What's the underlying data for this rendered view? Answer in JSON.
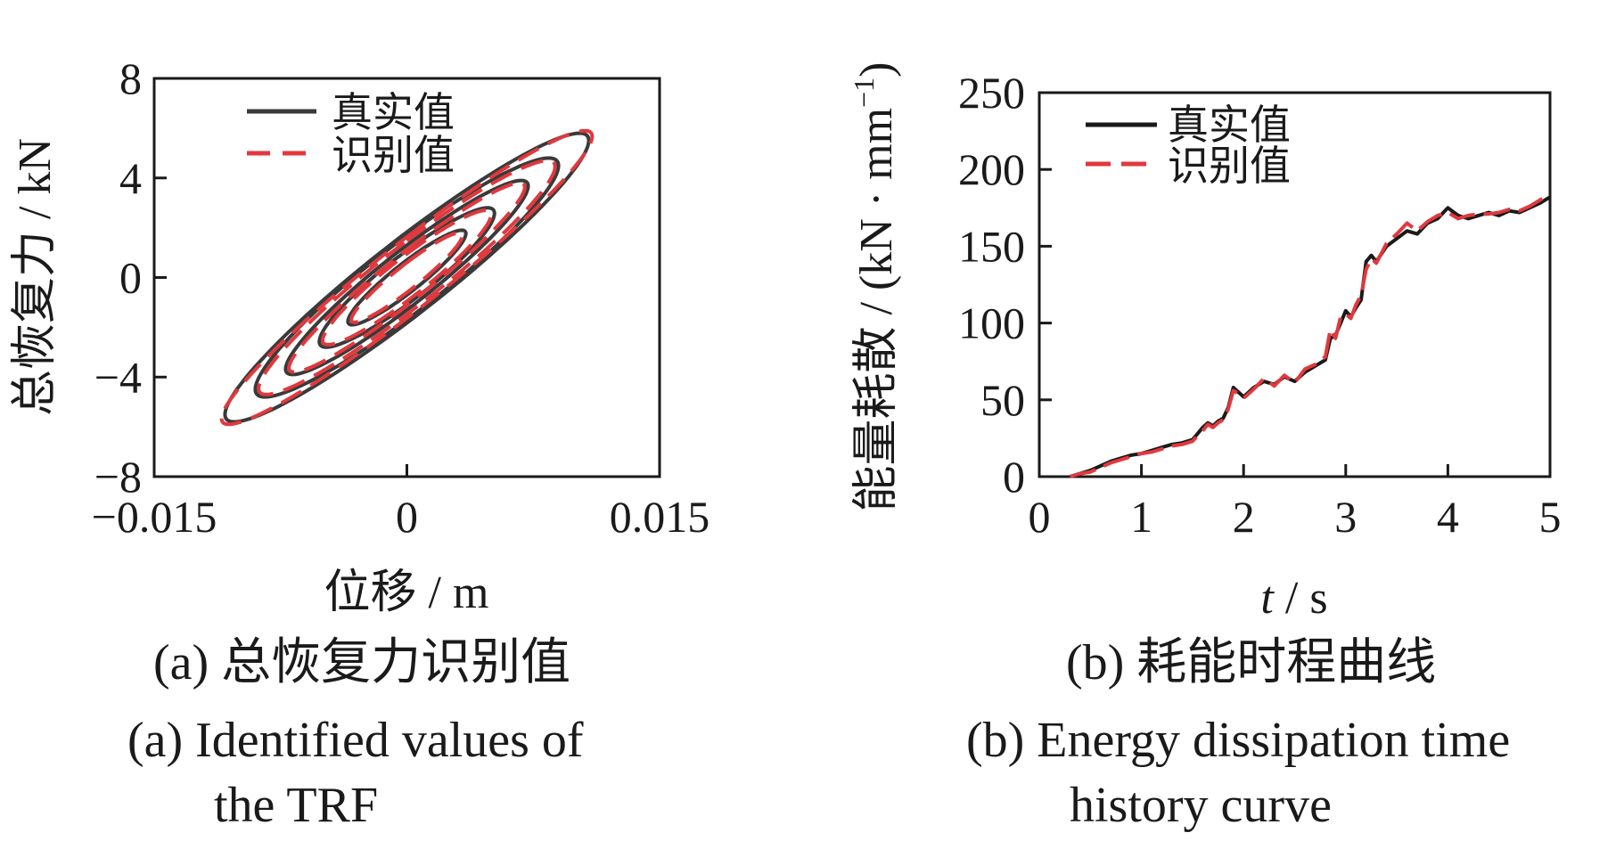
{
  "colors": {
    "real": "#3a3a3a",
    "identified": "#e0393e",
    "axis": "#1a1a1a"
  },
  "chart_data": [
    {
      "type": "line",
      "panel": "a",
      "xlabel": "位移 / m",
      "ylabel": "总恢复力 / kN",
      "xlim": [
        -0.015,
        0.015
      ],
      "ylim": [
        -8,
        8
      ],
      "x_ticks": [
        "−0.015",
        "0",
        "0.015"
      ],
      "y_ticks": [
        "8",
        "4",
        "0",
        "−4",
        "−8"
      ],
      "legend": [
        "真实值",
        "识别值"
      ],
      "legend_position": "top-left",
      "series": [
        {
          "name": "真实值",
          "style": "solid",
          "loops": [
            {
              "disp_amp": 0.0108,
              "force_amp": 5.8,
              "phase_lag": 0.32
            },
            {
              "disp_amp": 0.009,
              "force_amp": 4.8,
              "phase_lag": 0.36
            },
            {
              "disp_amp": 0.0072,
              "force_amp": 3.9,
              "phase_lag": 0.34
            },
            {
              "disp_amp": 0.0052,
              "force_amp": 2.8,
              "phase_lag": 0.4
            },
            {
              "disp_amp": 0.0035,
              "force_amp": 1.9,
              "phase_lag": 0.38
            }
          ]
        },
        {
          "name": "识别值",
          "style": "dashed",
          "loops": [
            {
              "disp_amp": 0.011,
              "force_amp": 5.9,
              "phase_lag": 0.28
            },
            {
              "disp_amp": 0.0088,
              "force_amp": 4.7,
              "phase_lag": 0.32
            },
            {
              "disp_amp": 0.007,
              "force_amp": 3.8,
              "phase_lag": 0.3
            },
            {
              "disp_amp": 0.005,
              "force_amp": 2.7,
              "phase_lag": 0.36
            },
            {
              "disp_amp": 0.0033,
              "force_amp": 1.8,
              "phase_lag": 0.34
            }
          ]
        }
      ]
    },
    {
      "type": "line",
      "panel": "b",
      "xlabel_italic": "t",
      "xlabel_rest": " / s",
      "ylabel_main": "能量耗散 / (kN · mm",
      "ylabel_sup": "−1",
      "ylabel_end": ")",
      "xlim": [
        0,
        5
      ],
      "ylim": [
        0,
        250
      ],
      "x_ticks": [
        "0",
        "1",
        "2",
        "3",
        "4",
        "5"
      ],
      "y_ticks": [
        "250",
        "200",
        "150",
        "100",
        "50",
        "0"
      ],
      "legend": [
        "真实值",
        "识别值"
      ],
      "legend_position": "top-left",
      "series": [
        {
          "name": "真实值",
          "style": "solid",
          "x": [
            0.3,
            0.4,
            0.5,
            0.6,
            0.7,
            0.8,
            0.9,
            1.0,
            1.1,
            1.2,
            1.3,
            1.4,
            1.5,
            1.6,
            1.65,
            1.7,
            1.75,
            1.8,
            1.85,
            1.9,
            1.95,
            2.0,
            2.1,
            2.2,
            2.3,
            2.4,
            2.5,
            2.6,
            2.7,
            2.8,
            2.85,
            2.9,
            2.95,
            3.0,
            3.05,
            3.1,
            3.15,
            3.2,
            3.25,
            3.3,
            3.4,
            3.5,
            3.6,
            3.7,
            3.8,
            3.9,
            4.0,
            4.1,
            4.2,
            4.3,
            4.4,
            4.5,
            4.6,
            4.7,
            4.8,
            4.9,
            5.0
          ],
          "y": [
            0,
            2,
            4,
            7,
            10,
            12,
            14,
            15,
            17,
            19,
            21,
            22,
            24,
            32,
            35,
            33,
            36,
            38,
            45,
            58,
            55,
            52,
            58,
            62,
            60,
            65,
            62,
            68,
            72,
            76,
            90,
            92,
            100,
            108,
            104,
            110,
            115,
            140,
            144,
            140,
            150,
            155,
            160,
            158,
            165,
            168,
            175,
            170,
            168,
            170,
            172,
            170,
            173,
            172,
            175,
            178,
            182
          ]
        },
        {
          "name": "识别值",
          "style": "dashed",
          "x": [
            0.3,
            0.4,
            0.5,
            0.6,
            0.7,
            0.8,
            0.9,
            1.0,
            1.1,
            1.2,
            1.3,
            1.4,
            1.5,
            1.6,
            1.65,
            1.7,
            1.75,
            1.8,
            1.85,
            1.9,
            1.95,
            2.0,
            2.1,
            2.2,
            2.3,
            2.4,
            2.5,
            2.6,
            2.7,
            2.8,
            2.85,
            2.9,
            2.95,
            3.0,
            3.05,
            3.1,
            3.15,
            3.2,
            3.25,
            3.3,
            3.4,
            3.5,
            3.6,
            3.7,
            3.8,
            3.9,
            4.0,
            4.1,
            4.2,
            4.3,
            4.4,
            4.5,
            4.6,
            4.7,
            4.8,
            4.9,
            5.0
          ],
          "y": [
            0,
            2,
            3,
            6,
            9,
            11,
            13,
            15,
            16,
            18,
            20,
            21,
            23,
            30,
            34,
            32,
            35,
            37,
            44,
            56,
            54,
            51,
            57,
            64,
            59,
            66,
            61,
            70,
            73,
            78,
            96,
            90,
            104,
            106,
            103,
            112,
            118,
            135,
            142,
            139,
            152,
            158,
            165,
            160,
            166,
            170,
            172,
            168,
            170,
            171,
            171,
            172,
            174,
            173,
            176,
            180,
            184
          ]
        }
      ]
    }
  ],
  "captions": {
    "a_zh": "(a)  总恢复力识别值",
    "a_en_1": "(a)  Identified values of",
    "a_en_2": "the TRF",
    "b_zh": "(b)  耗能时程曲线",
    "b_en_1": "(b)  Energy dissipation time",
    "b_en_2": "history curve"
  }
}
